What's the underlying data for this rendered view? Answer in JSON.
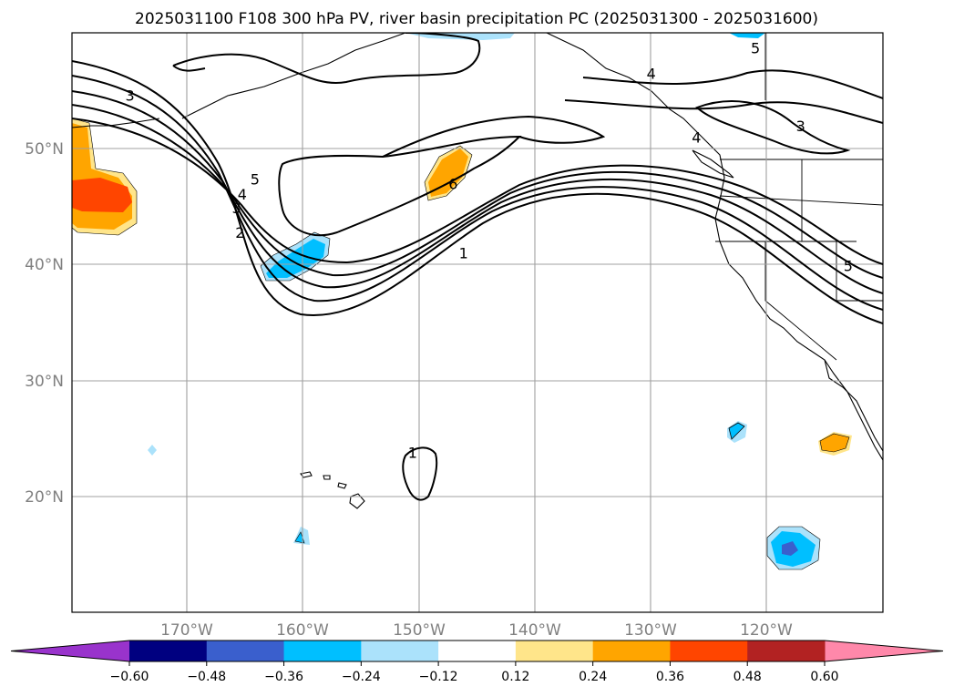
{
  "chart_data": {
    "type": "map-contour",
    "title": "2025031100 F108 300 hPa PV, river basin precipitation PC (2025031300 - 2025031600)",
    "lon_range": [
      -180,
      -110
    ],
    "lat_range": [
      10,
      60
    ],
    "grid": true,
    "lon_ticks": [
      -170,
      -160,
      -150,
      -140,
      -130,
      -120
    ],
    "lon_tick_labels": [
      "170°W",
      "160°W",
      "150°W",
      "140°W",
      "130°W",
      "120°W"
    ],
    "lat_ticks": [
      20,
      30,
      40,
      50
    ],
    "lat_tick_labels": [
      "20°N",
      "30°N",
      "40°N",
      "50°N"
    ],
    "pv_contour_labels": [
      {
        "text": "1",
        "lon": -146.2,
        "lat": 41.0
      },
      {
        "text": "2",
        "lon": -165.5,
        "lat": 42.8
      },
      {
        "text": "3",
        "lon": -165.8,
        "lat": 44.9
      },
      {
        "text": "4",
        "lon": -165.3,
        "lat": 46.1
      },
      {
        "text": "5",
        "lon": -164.2,
        "lat": 47.4
      },
      {
        "text": "6",
        "lon": -147.1,
        "lat": 47.0
      },
      {
        "text": "3",
        "lon": -175.0,
        "lat": 54.6
      },
      {
        "text": "4",
        "lon": -130.0,
        "lat": 56.5
      },
      {
        "text": "4",
        "lon": -126.1,
        "lat": 51.0
      },
      {
        "text": "5",
        "lon": -121.0,
        "lat": 58.7
      },
      {
        "text": "3",
        "lon": -117.1,
        "lat": 52.0
      },
      {
        "text": "5",
        "lon": -113.0,
        "lat": 39.9
      },
      {
        "text": "1",
        "lon": -150.6,
        "lat": 23.8
      }
    ],
    "colorbar": {
      "boundaries": [
        -0.6,
        -0.48,
        -0.36,
        -0.24,
        -0.12,
        0.12,
        0.24,
        0.36,
        0.48,
        0.6
      ],
      "tick_labels": [
        "−0.60",
        "−0.48",
        "−0.36",
        "−0.24",
        "−0.12",
        "0.12",
        "0.24",
        "0.36",
        "0.48",
        "0.60"
      ],
      "colors": [
        "#9933cc",
        "#000080",
        "#3a5fcd",
        "#00bfff",
        "#abe2fb",
        "#ffffff",
        "#ffe58a",
        "#ffa500",
        "#ff4500",
        "#b22222",
        "#ff88aa"
      ],
      "extend": "both"
    }
  }
}
